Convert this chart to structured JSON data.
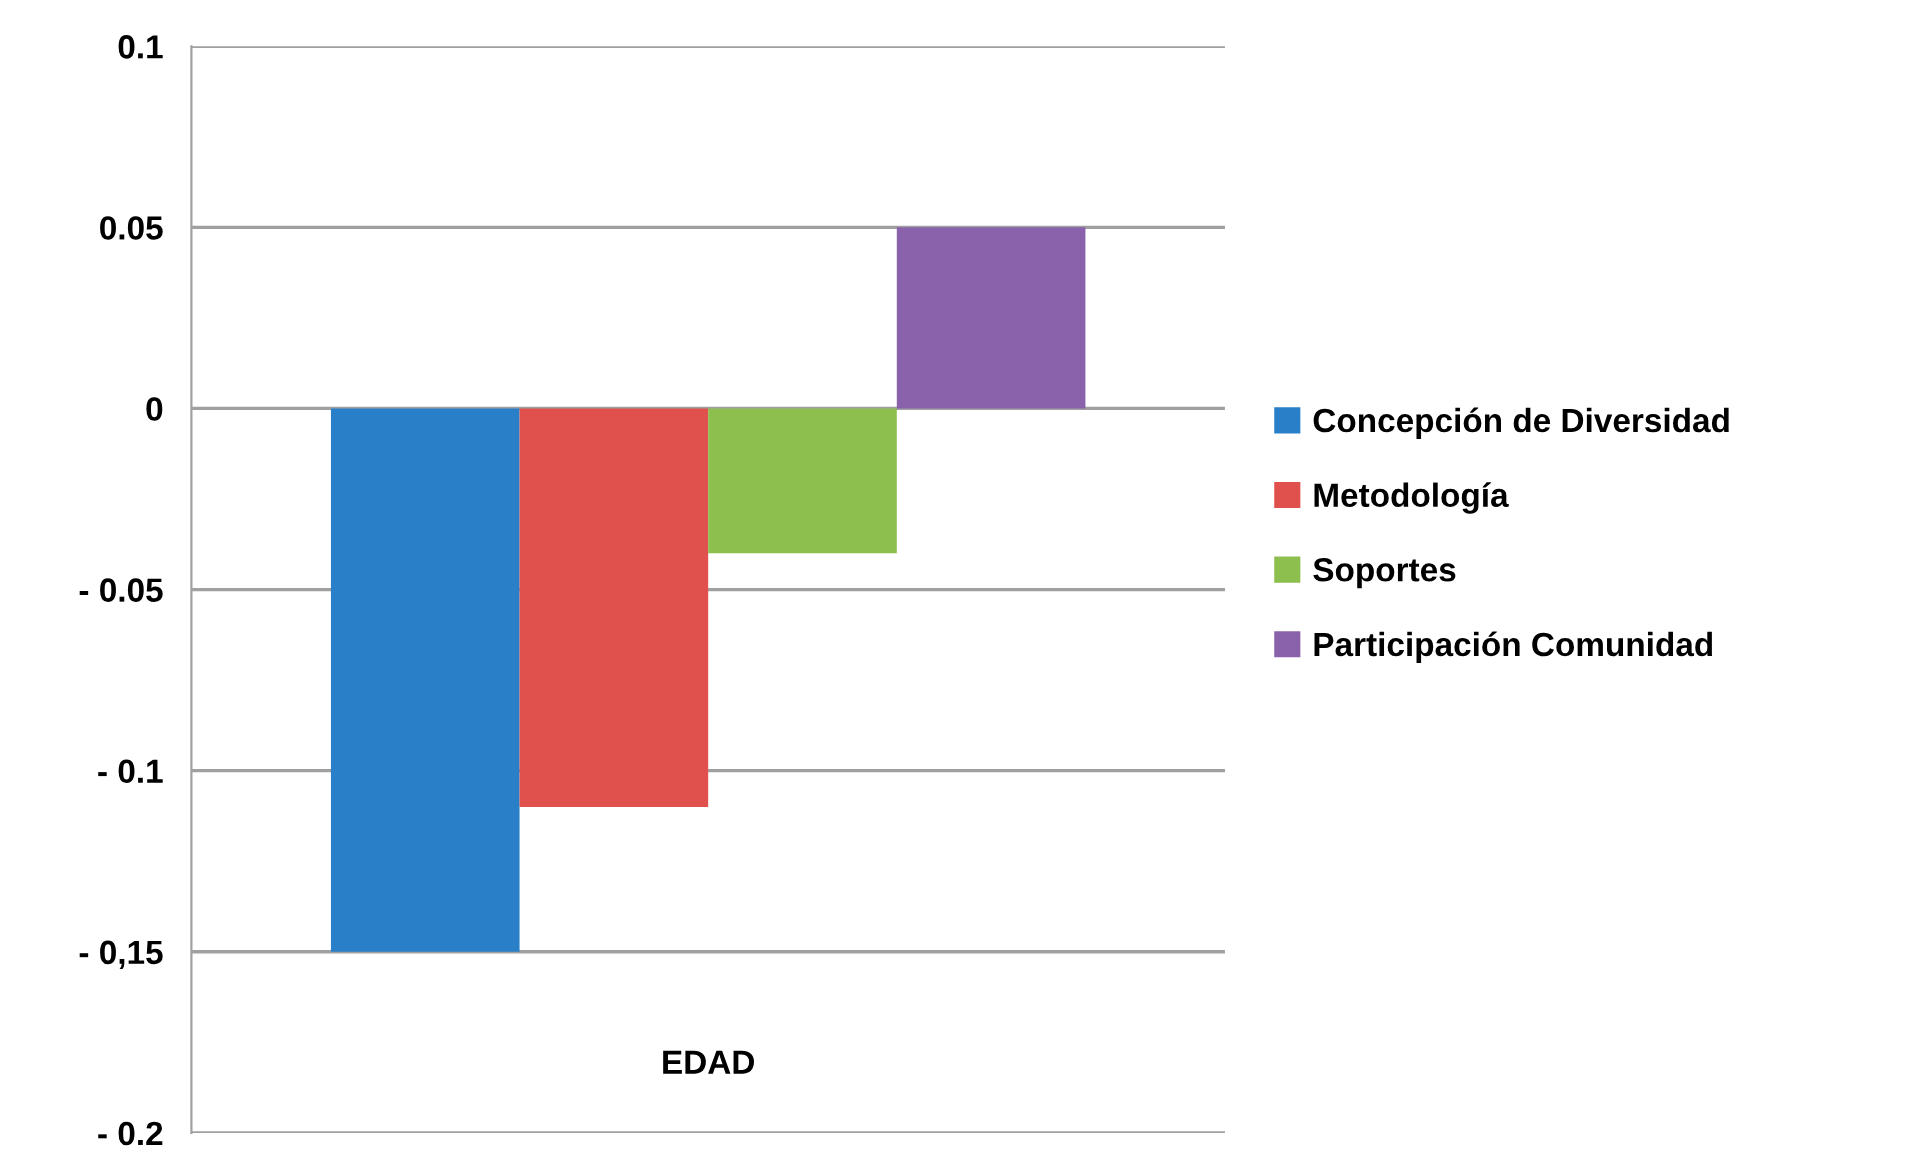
{
  "chart_data": {
    "type": "bar",
    "categories": [
      "EDAD"
    ],
    "series": [
      {
        "name": "Concepción de Diversidad",
        "color": "#2a7fc9",
        "values": [
          -0.15
        ]
      },
      {
        "name": "Metodología",
        "color": "#e0504c",
        "values": [
          -0.11
        ]
      },
      {
        "name": "Soportes",
        "color": "#8dbf4f",
        "values": [
          -0.04
        ]
      },
      {
        "name": "Participación Comunidad",
        "color": "#8a62ab",
        "values": [
          0.05
        ]
      }
    ],
    "ylim": [
      -0.2,
      0.1
    ],
    "yticks": [
      {
        "value": -0.2,
        "label": "- 0.2"
      },
      {
        "value": -0.15,
        "label": "- 0,15"
      },
      {
        "value": -0.1,
        "label": "- 0.1"
      },
      {
        "value": -0.05,
        "label": "- 0.05"
      },
      0,
      0.05,
      0.1
    ],
    "grid": "y",
    "legend": "right"
  }
}
